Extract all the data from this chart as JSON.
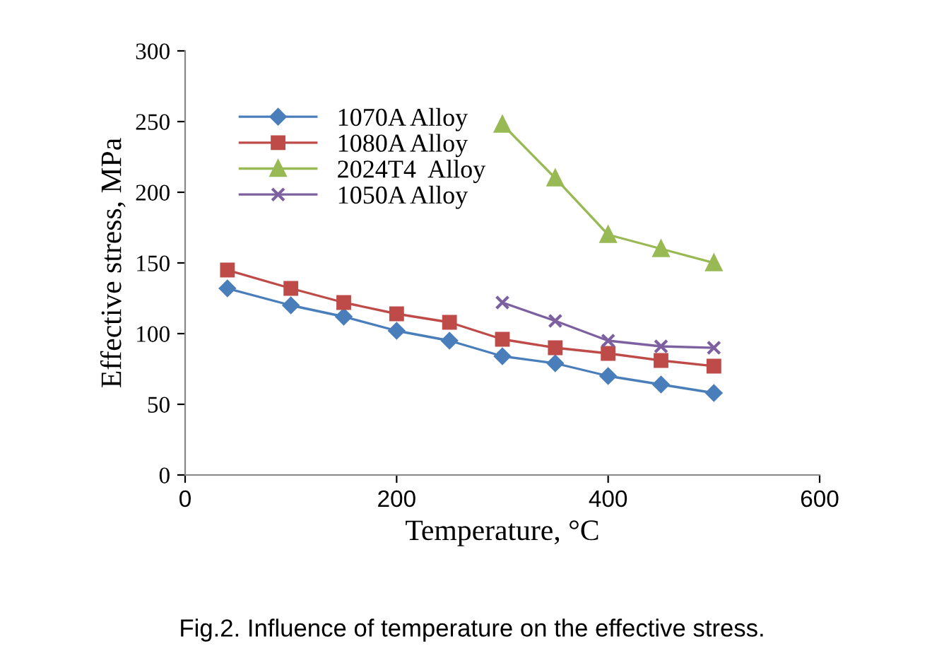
{
  "chart_data": {
    "type": "line",
    "xlabel": "Temperature, °C",
    "ylabel": "Effective stress, MPa",
    "xlim": [
      0,
      600
    ],
    "xticks": [
      0,
      200,
      400,
      600
    ],
    "ylim": [
      0,
      300
    ],
    "yticks": [
      0,
      50,
      100,
      150,
      200,
      250,
      300
    ],
    "grid": false,
    "legend": "top left",
    "series": [
      {
        "name": "1070A Alloy",
        "color": "#4a7ebb",
        "marker": "diamond",
        "x": [
          40,
          100,
          150,
          200,
          250,
          300,
          350,
          400,
          450,
          500
        ],
        "values": [
          132,
          120,
          112,
          102,
          95,
          84,
          79,
          70,
          64,
          58
        ]
      },
      {
        "name": "1080A Alloy",
        "color": "#be4b48",
        "marker": "square",
        "x": [
          40,
          100,
          150,
          200,
          250,
          300,
          350,
          400,
          450,
          500
        ],
        "values": [
          145,
          132,
          122,
          114,
          108,
          96,
          90,
          86,
          81,
          77
        ]
      },
      {
        "name": "2024T4  Alloy",
        "color": "#98b954",
        "marker": "triangle",
        "x": [
          300,
          350,
          400,
          450,
          500
        ],
        "values": [
          248,
          210,
          170,
          160,
          150
        ]
      },
      {
        "name": "1050A Alloy",
        "color": "#7d60a0",
        "marker": "cross",
        "x": [
          300,
          350,
          400,
          450,
          500
        ],
        "values": [
          122,
          109,
          95,
          91,
          90
        ]
      }
    ],
    "annotations": [
      "Fig.2. Influence of temperature on the effective stress."
    ]
  }
}
